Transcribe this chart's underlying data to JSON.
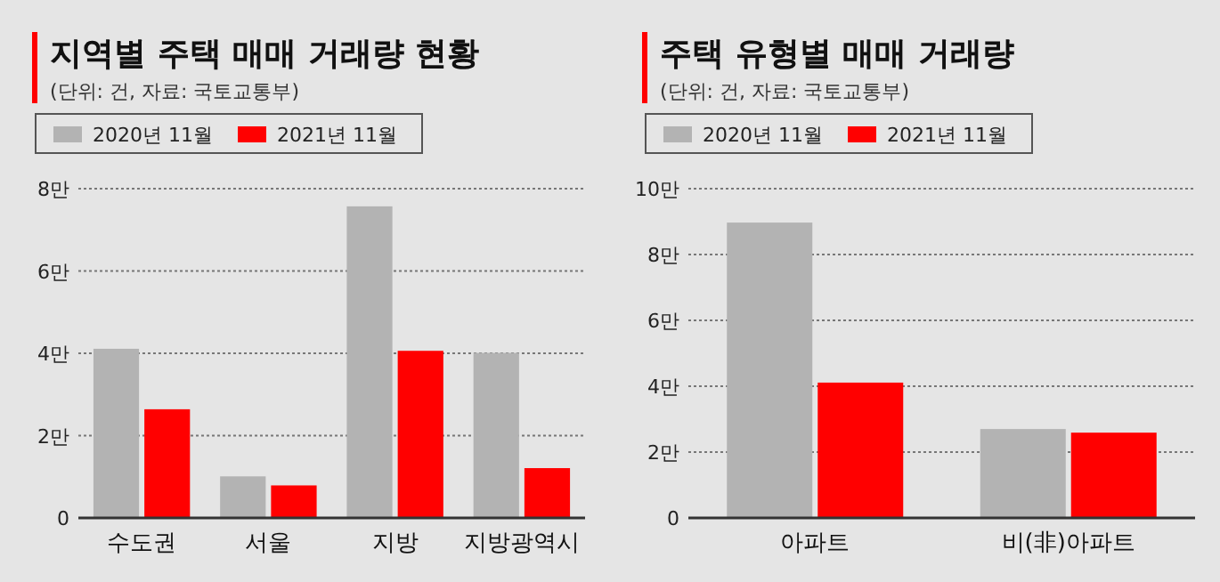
{
  "chart_data": [
    {
      "type": "bar",
      "title": "지역별 주택 매매 거래량 현황",
      "subtitle": "(단위: 건, 자료: 국토교통부)",
      "categories": [
        "수도권",
        "서울",
        "지방",
        "지방광역시"
      ],
      "series": [
        {
          "name": "2020년 11월",
          "color": "#b3b3b3",
          "values": [
            4.11,
            1.01,
            7.57,
            4.01
          ]
        },
        {
          "name": "2021년 11월",
          "color": "#ff0000",
          "values": [
            2.64,
            0.79,
            4.06,
            1.21
          ]
        }
      ],
      "ylim": [
        0,
        8
      ],
      "yticks": [
        0,
        {
          "value": 2,
          "label": "2만"
        },
        {
          "value": 4,
          "label": "4만"
        },
        {
          "value": 6,
          "label": "6만"
        },
        {
          "value": 8,
          "label": "8만"
        }
      ],
      "grid": "y",
      "legend": "top"
    },
    {
      "type": "bar",
      "title": "주택 유형별 매매 거래량",
      "subtitle": "(단위: 건, 자료: 국토교통부)",
      "categories": [
        "아파트",
        "비(非)아파트"
      ],
      "series": [
        {
          "name": "2020년 11월",
          "color": "#b3b3b3",
          "values": [
            8.97,
            2.7
          ]
        },
        {
          "name": "2021년 11월",
          "color": "#ff0000",
          "values": [
            4.11,
            2.59
          ]
        }
      ],
      "ylim": [
        0,
        10
      ],
      "yticks": [
        0,
        {
          "value": 2,
          "label": "2만"
        },
        {
          "value": 4,
          "label": "4만"
        },
        {
          "value": 6,
          "label": "6만"
        },
        {
          "value": 8,
          "label": "8만"
        },
        {
          "value": 10,
          "label": "10만"
        }
      ],
      "grid": "y",
      "legend": "top"
    }
  ]
}
